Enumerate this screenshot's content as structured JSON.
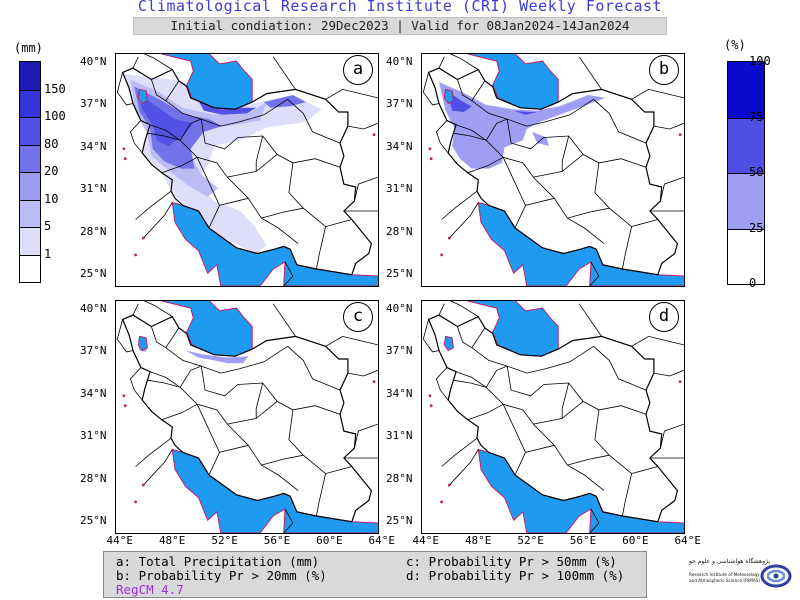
{
  "header": {
    "title": "Climatological Research Institute (CRI) Weekly Forecast",
    "subtitle": "Initial condiation: 29Dec2023 | Valid for 08Jan2024-14Jan2024"
  },
  "left_colorbar": {
    "unit": "(mm)",
    "labels": [
      "150",
      "100",
      "80",
      "20",
      "10",
      "5",
      "1"
    ],
    "colors": [
      "#1c1cb4",
      "#3434d9",
      "#5252e6",
      "#7272e9",
      "#9b9bef",
      "#bcbcf5",
      "#dedefa",
      "#ffffff"
    ]
  },
  "right_colorbar": {
    "unit": "(%)",
    "labels": [
      "100",
      "75",
      "50",
      "25",
      "0"
    ],
    "colors": [
      "#0a0acd",
      "#5050e6",
      "#9e9ef2",
      "#ffffff"
    ]
  },
  "panels": [
    {
      "label": "a"
    },
    {
      "label": "b"
    },
    {
      "label": "c"
    },
    {
      "label": "d"
    }
  ],
  "lat_ticks": [
    "40°N",
    "37°N",
    "34°N",
    "31°N",
    "28°N",
    "25°N"
  ],
  "lon_ticks": [
    "44°E",
    "48°E",
    "52°E",
    "56°E",
    "60°E",
    "64°E"
  ],
  "legend": {
    "a": "a: Total Precipitation (mm)",
    "b": "b: Probability Pr > 20mm (%)",
    "c": "c: Probability Pr > 50mm (%)",
    "d": "d: Probability Pr > 100mm (%)",
    "model": "RegCM 4.7"
  },
  "logo": {
    "name_fa": "پژوهشگاه هواشناسی و علوم جو",
    "name_en_1": "Research Institute of Meteorology",
    "name_en_2": "and Atmospheric Science (RIMAS)"
  },
  "colors": {
    "water": "#1e9bf0",
    "border": "#000000",
    "coast": "#c0206a",
    "title": "#3b3bd6"
  }
}
